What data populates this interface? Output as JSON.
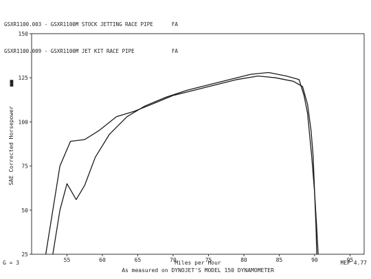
{
  "legend_lines": [
    "GSXR1100.003 - GSXR1100M STOCK JETTING RACE PIPE      FA",
    "GSXR1100.009 - GSXR1100M JET KIT RACE PIPE            FA"
  ],
  "chart_data": {
    "type": "line",
    "xlabel": "Miles per Hour",
    "ylabel": "SAE Corrected Horsepower",
    "ylabel_marker": "■■",
    "footnote": "As measured on DYNOJET'S MODEL 150 DYNAMOMETER",
    "corner_left": "G = 3",
    "corner_right": "MEP 4.77",
    "xlim": [
      50,
      97
    ],
    "ylim": [
      25,
      150
    ],
    "xticks": [
      55,
      60,
      65,
      70,
      75,
      80,
      85,
      90,
      95
    ],
    "yticks": [
      25,
      50,
      75,
      100,
      125,
      150
    ],
    "grid": false,
    "series": [
      {
        "name": "GSXR1100.009 - GSXR1100M JET KIT RACE PIPE",
        "points": [
          [
            52.0,
            25
          ],
          [
            53.0,
            50
          ],
          [
            54.0,
            75
          ],
          [
            55.5,
            89
          ],
          [
            57.5,
            90
          ],
          [
            59.5,
            95
          ],
          [
            62.0,
            103
          ],
          [
            64.5,
            106
          ],
          [
            67.0,
            110
          ],
          [
            70.0,
            115
          ],
          [
            73.0,
            118
          ],
          [
            76.0,
            121
          ],
          [
            79.0,
            124
          ],
          [
            82.0,
            126
          ],
          [
            84.5,
            125
          ],
          [
            87.0,
            123
          ],
          [
            88.3,
            120
          ],
          [
            89.0,
            110
          ],
          [
            89.5,
            95
          ],
          [
            89.8,
            80
          ],
          [
            90.0,
            60
          ],
          [
            90.2,
            40
          ],
          [
            90.3,
            25
          ]
        ]
      },
      {
        "name": "GSXR1100.003 - GSXR1100M STOCK JETTING RACE PIPE",
        "points": [
          [
            53.0,
            25
          ],
          [
            54.0,
            50
          ],
          [
            55.0,
            65
          ],
          [
            56.3,
            56
          ],
          [
            57.5,
            64
          ],
          [
            59.0,
            80
          ],
          [
            61.0,
            93
          ],
          [
            63.5,
            103
          ],
          [
            66.0,
            109
          ],
          [
            69.0,
            114
          ],
          [
            72.0,
            118
          ],
          [
            75.0,
            121
          ],
          [
            78.0,
            124
          ],
          [
            81.0,
            127
          ],
          [
            83.5,
            128
          ],
          [
            86.0,
            126
          ],
          [
            87.8,
            124
          ],
          [
            88.5,
            115
          ],
          [
            89.0,
            105
          ],
          [
            89.6,
            80
          ],
          [
            90.0,
            60
          ],
          [
            90.3,
            40
          ],
          [
            90.5,
            25
          ]
        ]
      }
    ]
  }
}
